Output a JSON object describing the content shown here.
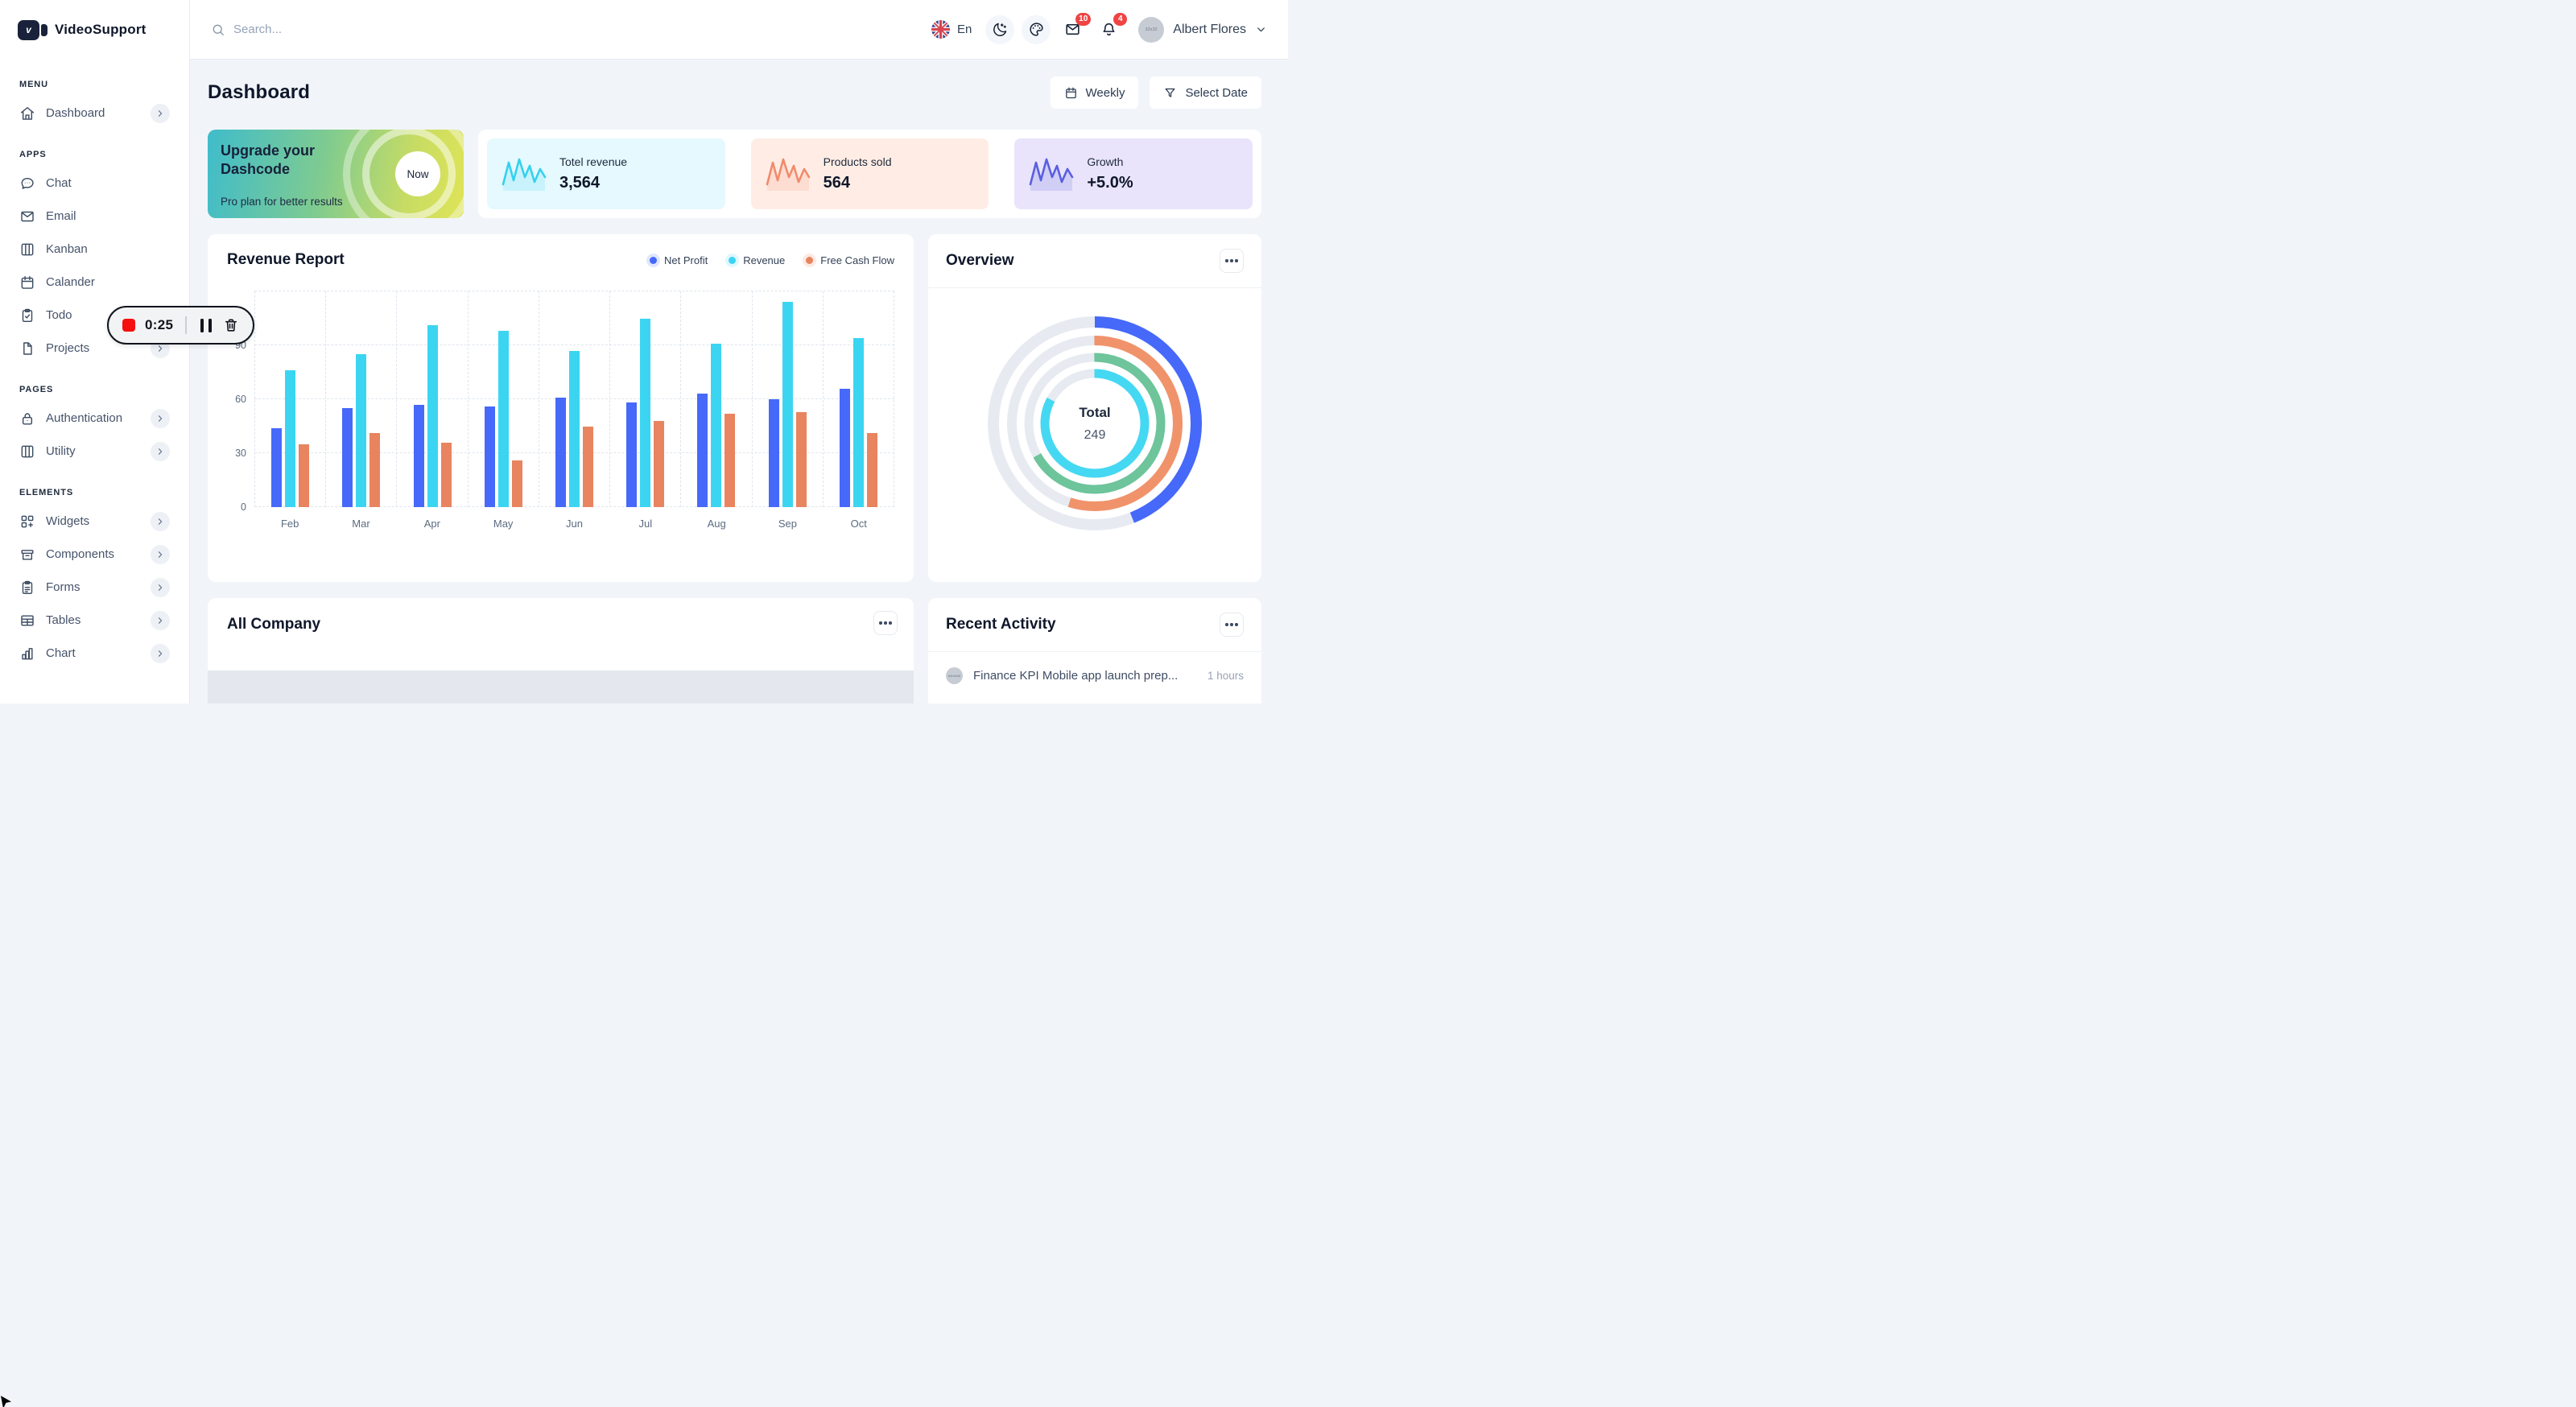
{
  "app": {
    "name": "VideoSupport"
  },
  "header": {
    "search_placeholder": "Search...",
    "language_label": "En",
    "mail_badge": "10",
    "bell_badge": "4",
    "user_name": "Albert Flores",
    "avatar_placeholder": "32x32"
  },
  "sidebar": {
    "sections": [
      {
        "label": "MENU",
        "items": [
          {
            "label": "Dashboard",
            "icon": "home",
            "chevron": true
          }
        ]
      },
      {
        "label": "APPS",
        "items": [
          {
            "label": "Chat",
            "icon": "chat"
          },
          {
            "label": "Email",
            "icon": "mail"
          },
          {
            "label": "Kanban",
            "icon": "kanban"
          },
          {
            "label": "Calander",
            "icon": "calendar"
          },
          {
            "label": "Todo",
            "icon": "todo"
          },
          {
            "label": "Projects",
            "icon": "file",
            "chevron": true
          }
        ]
      },
      {
        "label": "PAGES",
        "items": [
          {
            "label": "Authentication",
            "icon": "lock",
            "chevron": true
          },
          {
            "label": "Utility",
            "icon": "columns",
            "chevron": true
          }
        ]
      },
      {
        "label": "ELEMENTS",
        "items": [
          {
            "label": "Widgets",
            "icon": "widgets",
            "chevron": true
          },
          {
            "label": "Components",
            "icon": "components",
            "chevron": true
          },
          {
            "label": "Forms",
            "icon": "forms",
            "chevron": true
          },
          {
            "label": "Tables",
            "icon": "table",
            "chevron": true
          },
          {
            "label": "Chart",
            "icon": "chart",
            "chevron": true
          }
        ]
      }
    ]
  },
  "recording_timer": {
    "time": "0:25"
  },
  "page": {
    "title": "Dashboard",
    "period_button": "Weekly",
    "date_button": "Select Date"
  },
  "upgrade_banner": {
    "title": "Upgrade your Dashcode",
    "subtitle": "Pro plan for better results",
    "cta": "Now"
  },
  "stat_cards": [
    {
      "label": "Totel revenue",
      "value": "3,564",
      "bg": "#E5F9FF",
      "accent": "#35D1EE"
    },
    {
      "label": "Products sold",
      "value": "564",
      "bg": "#FFEDE5",
      "accent": "#F08B6C"
    },
    {
      "label": "Growth",
      "value": "+5.0%",
      "bg": "#E9E4FB",
      "accent": "#5A5FE0"
    }
  ],
  "revenue_report": {
    "title": "Revenue Report"
  },
  "overview": {
    "title": "Overview",
    "center_label": "Total",
    "center_value": "249"
  },
  "all_company": {
    "title": "All Company"
  },
  "recent_activity": {
    "title": "Recent Activity",
    "items": [
      {
        "avatar_placeholder": "640x640",
        "text": "Finance KPI Mobile app launch prep...",
        "time": "1 hours"
      }
    ]
  },
  "chart_data": [
    {
      "type": "bar",
      "title": "Revenue Report",
      "categories": [
        "Feb",
        "Mar",
        "Apr",
        "May",
        "Jun",
        "Jul",
        "Aug",
        "Sep",
        "Oct"
      ],
      "series": [
        {
          "name": "Net Profit",
          "color": "#4669FA",
          "values": [
            44,
            55,
            57,
            56,
            61,
            58,
            63,
            60,
            66
          ]
        },
        {
          "name": "Revenue",
          "color": "#3BD5F2",
          "values": [
            76,
            85,
            101,
            98,
            87,
            105,
            91,
            114,
            94
          ]
        },
        {
          "name": "Free Cash Flow",
          "color": "#E8845F",
          "values": [
            35,
            41,
            36,
            26,
            45,
            48,
            52,
            53,
            41
          ]
        }
      ],
      "ylim": [
        0,
        120
      ],
      "yticks": [
        0,
        30,
        60,
        90
      ],
      "grid": "dashed",
      "legend_position": "top-right"
    },
    {
      "type": "radialBar",
      "title": "Overview",
      "series": [
        {
          "name": "ring-outer",
          "value": 44,
          "color": "#4669FA"
        },
        {
          "name": "ring-2",
          "value": 55,
          "color": "#F0936B"
        },
        {
          "name": "ring-3",
          "value": 67,
          "color": "#6EC49B"
        },
        {
          "name": "ring-inner",
          "value": 83,
          "color": "#45D8F2"
        }
      ],
      "track_color": "#E7EBF1",
      "center": {
        "label": "Total",
        "value": "249"
      }
    }
  ]
}
